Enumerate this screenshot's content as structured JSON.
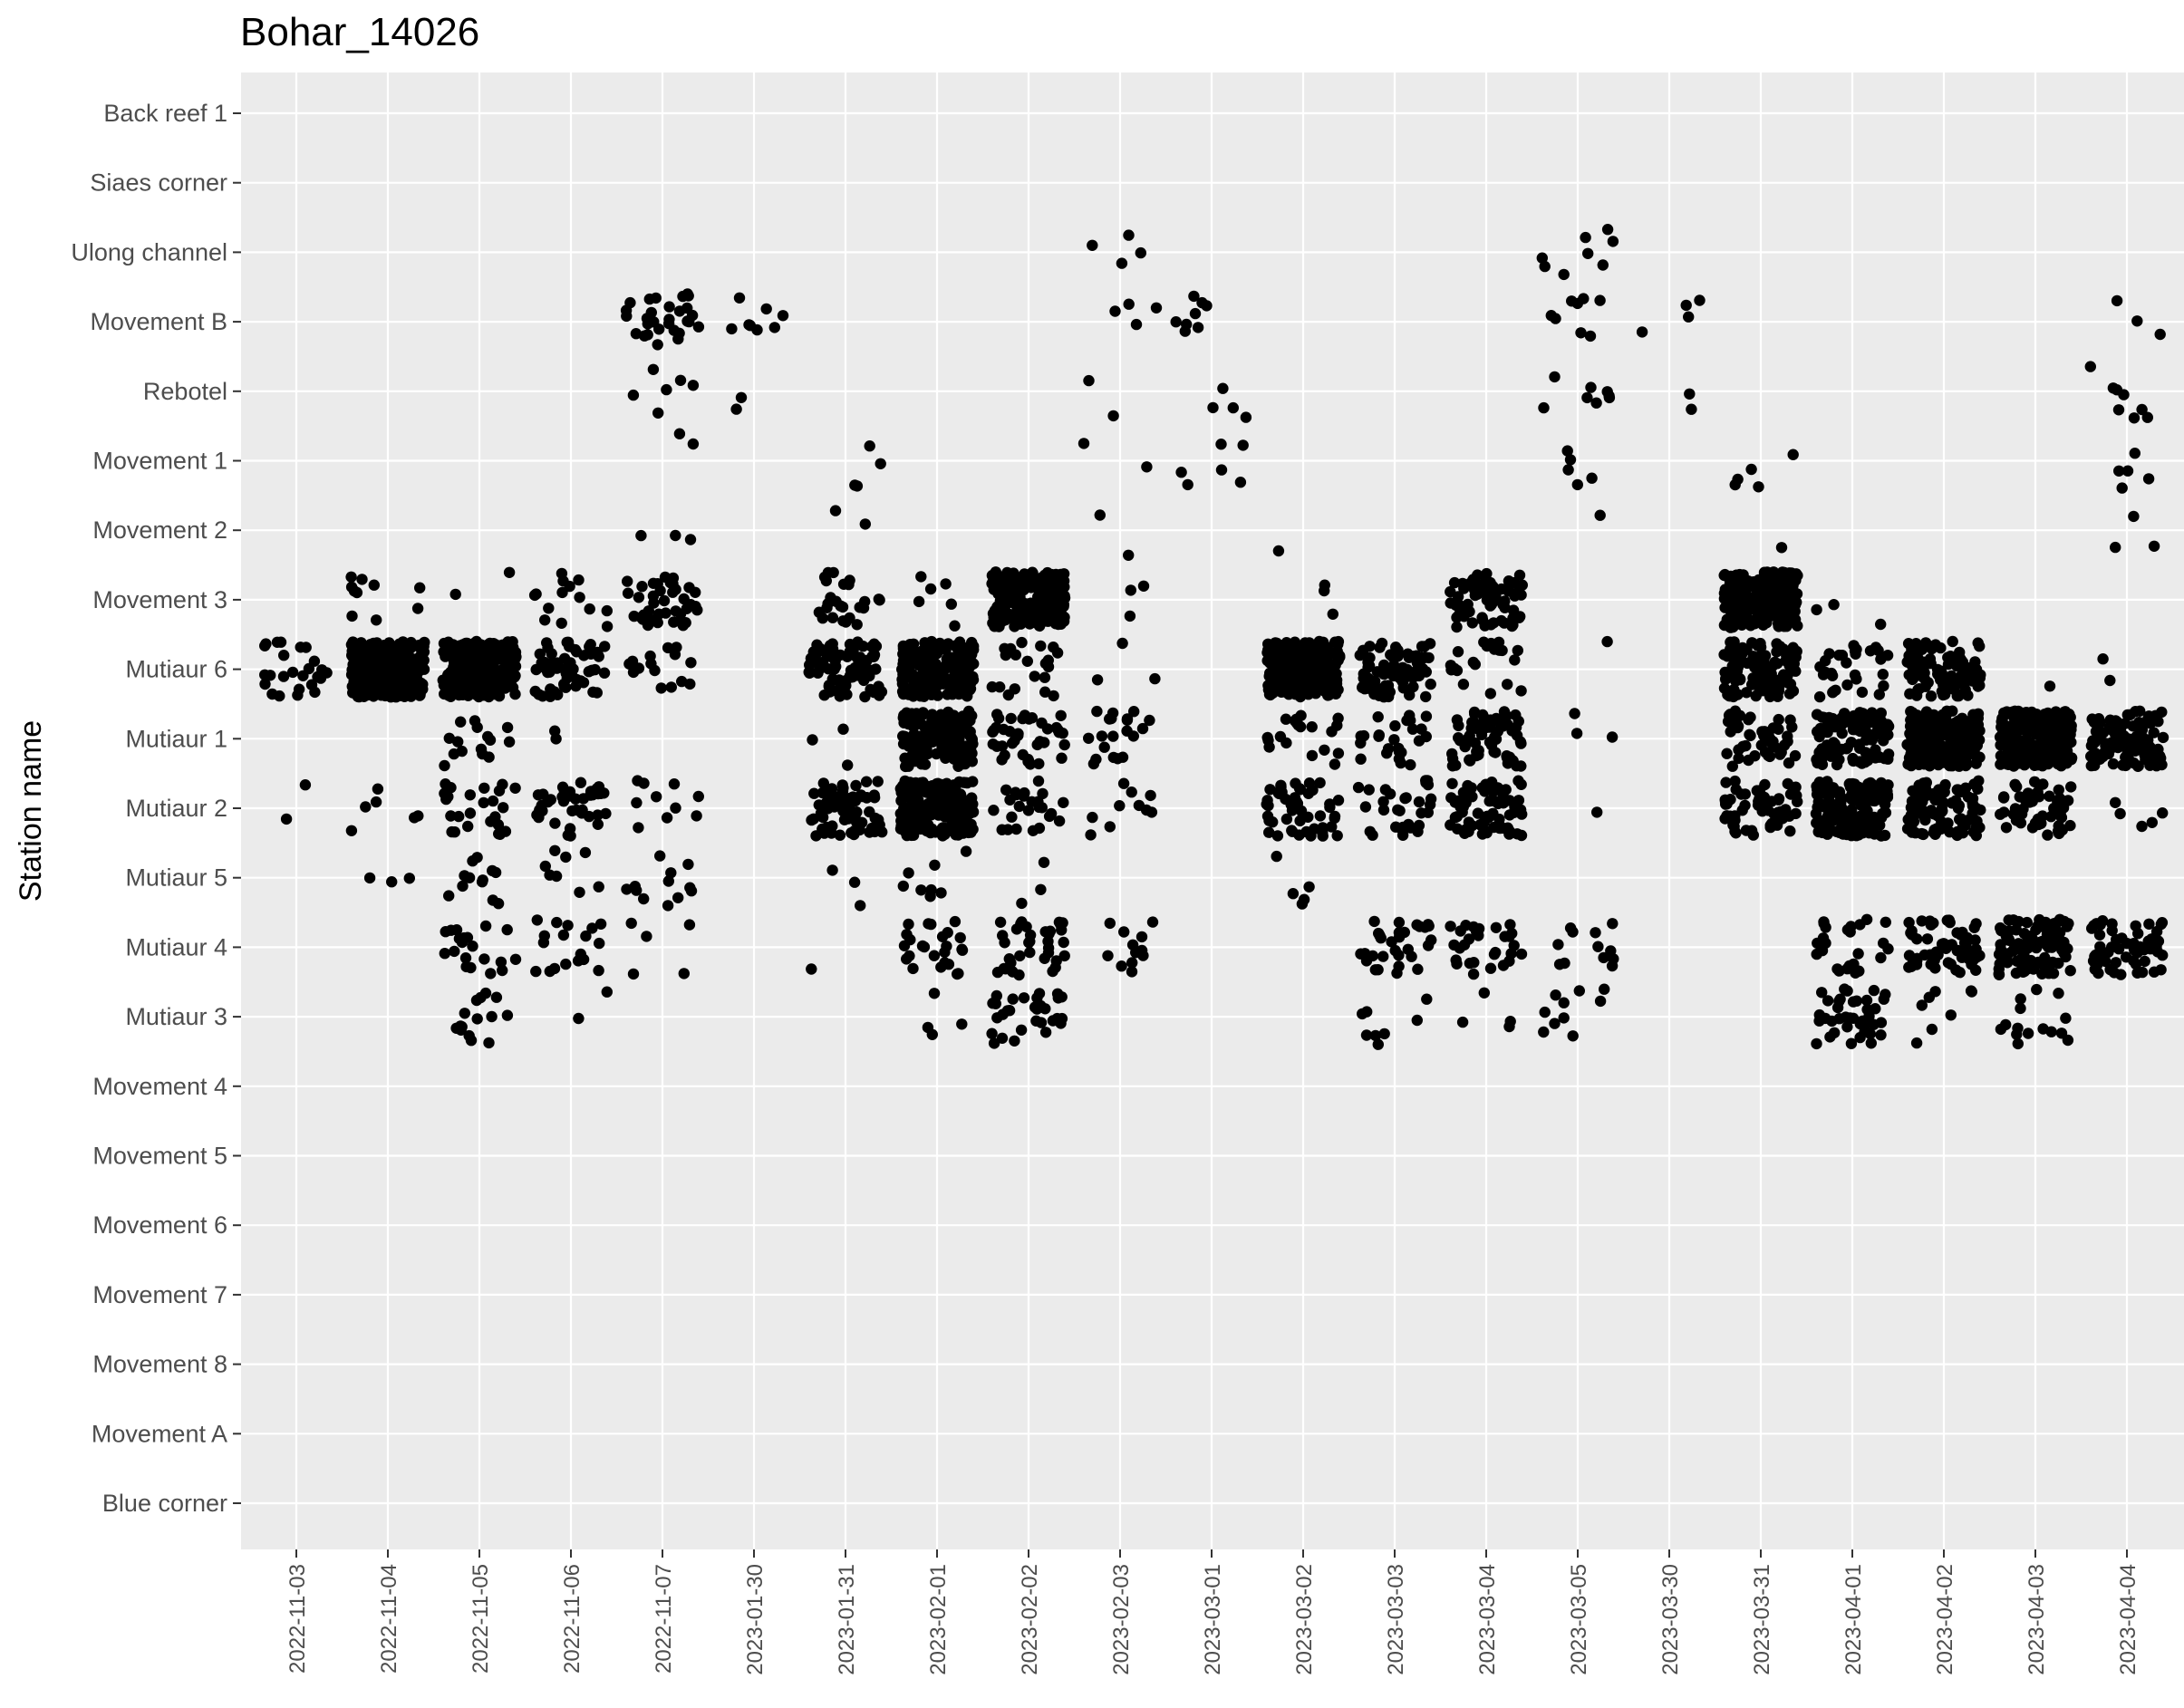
{
  "chart_data": {
    "type": "scatter",
    "title": "Bohar_14026",
    "xlabel": "",
    "ylabel": "Station name",
    "grid": true,
    "legend": "none",
    "point_color": "#000000",
    "panel_color": "#ebebeb",
    "grid_color": "#ffffff",
    "x_categories": [
      "2022-11-03",
      "2022-11-04",
      "2022-11-05",
      "2022-11-06",
      "2022-11-07",
      "2023-01-30",
      "2023-01-31",
      "2023-02-01",
      "2023-02-02",
      "2023-02-03",
      "2023-03-01",
      "2023-03-02",
      "2023-03-03",
      "2023-03-04",
      "2023-03-05",
      "2023-03-30",
      "2023-03-31",
      "2023-04-01",
      "2023-04-02",
      "2023-04-03",
      "2023-04-04"
    ],
    "y_categories": [
      "Back reef 1",
      "Siaes corner",
      "Ulong channel",
      "Movement B",
      "Rebotel",
      "Movement 1",
      "Movement 2",
      "Movement 3",
      "Mutiaur 6",
      "Mutiaur 1",
      "Mutiaur 2",
      "Mutiaur 5",
      "Mutiaur 4",
      "Mutiaur 3",
      "Movement 4",
      "Movement 5",
      "Movement 6",
      "Movement 7",
      "Movement 8",
      "Movement A",
      "Blue corner"
    ],
    "jitter": {
      "x": 0.4,
      "y": 0.4
    },
    "detection_groups": [
      {
        "x": "2022-11-03",
        "counts": {
          "Mutiaur 6": 25,
          "Mutiaur 2": 2
        }
      },
      {
        "x": "2022-11-04",
        "counts": {
          "Movement 3": 10,
          "Mutiaur 6": 300,
          "Mutiaur 2": 6,
          "Mutiaur 5": 3
        }
      },
      {
        "x": "2022-11-05",
        "counts": {
          "Movement 3": 2,
          "Mutiaur 6": 250,
          "Mutiaur 1": 15,
          "Mutiaur 2": 25,
          "Mutiaur 5": 12,
          "Mutiaur 4": 20,
          "Mutiaur 3": 15
        }
      },
      {
        "x": "2022-11-06",
        "counts": {
          "Movement 3": 14,
          "Mutiaur 6": 60,
          "Mutiaur 1": 2,
          "Mutiaur 2": 40,
          "Mutiaur 5": 8,
          "Mutiaur 4": 18,
          "Mutiaur 3": 2
        }
      },
      {
        "x": "2022-11-07",
        "counts": {
          "Movement B": 30,
          "Rebotel": 6,
          "Movement 1": 2,
          "Movement 2": 3,
          "Movement 3": 40,
          "Mutiaur 6": 15,
          "Mutiaur 2": 10,
          "Mutiaur 5": 12,
          "Mutiaur 4": 5
        }
      },
      {
        "x": "2023-01-30",
        "counts": {
          "Movement B": 8,
          "Rebotel": 2
        }
      },
      {
        "x": "2023-01-31",
        "counts": {
          "Movement 1": 4,
          "Movement 2": 2,
          "Movement 3": 25,
          "Mutiaur 6": 80,
          "Mutiaur 1": 3,
          "Mutiaur 2": 70,
          "Mutiaur 5": 3,
          "Mutiaur 4": 1
        }
      },
      {
        "x": "2023-02-01",
        "counts": {
          "Movement 3": 6,
          "Mutiaur 6": 200,
          "Mutiaur 1": 150,
          "Mutiaur 2": 200,
          "Mutiaur 5": 8,
          "Mutiaur 4": 25,
          "Mutiaur 3": 4
        }
      },
      {
        "x": "2023-02-02",
        "counts": {
          "Movement 3": 200,
          "Mutiaur 6": 20,
          "Mutiaur 1": 40,
          "Mutiaur 2": 25,
          "Mutiaur 5": 3,
          "Mutiaur 4": 35,
          "Mutiaur 3": 30
        }
      },
      {
        "x": "2023-02-03",
        "counts": {
          "Ulong channel": 4,
          "Movement B": 4,
          "Rebotel": 2,
          "Movement 1": 2,
          "Movement 2": 2,
          "Movement 3": 3,
          "Mutiaur 6": 3,
          "Mutiaur 1": 20,
          "Mutiaur 2": 10,
          "Mutiaur 4": 12
        }
      },
      {
        "x": "2023-03-01",
        "counts": {
          "Movement B": 8,
          "Rebotel": 4,
          "Movement 1": 6
        }
      },
      {
        "x": "2023-03-02",
        "counts": {
          "Movement 2": 1,
          "Movement 3": 3,
          "Mutiaur 6": 250,
          "Mutiaur 1": 20,
          "Mutiaur 2": 50,
          "Mutiaur 5": 5
        }
      },
      {
        "x": "2023-03-03",
        "counts": {
          "Mutiaur 6": 80,
          "Mutiaur 1": 25,
          "Mutiaur 2": 30,
          "Mutiaur 4": 30,
          "Mutiaur 3": 8
        }
      },
      {
        "x": "2023-03-04",
        "counts": {
          "Movement 3": 70,
          "Mutiaur 6": 20,
          "Mutiaur 1": 60,
          "Mutiaur 2": 70,
          "Mutiaur 4": 30,
          "Mutiaur 3": 4
        }
      },
      {
        "x": "2023-03-05",
        "counts": {
          "Ulong channel": 8,
          "Movement B": 8,
          "Rebotel": 8,
          "Movement 1": 5,
          "Movement 2": 1,
          "Mutiaur 6": 1,
          "Mutiaur 1": 3,
          "Mutiaur 2": 1,
          "Mutiaur 4": 12,
          "Mutiaur 3": 10
        }
      },
      {
        "x": "2023-03-30",
        "counts": {
          "Movement B": 4,
          "Rebotel": 2
        }
      },
      {
        "x": "2023-03-31",
        "counts": {
          "Movement 1": 5,
          "Movement 2": 1,
          "Movement 3": 250,
          "Mutiaur 6": 120,
          "Mutiaur 1": 50,
          "Mutiaur 2": 60
        }
      },
      {
        "x": "2023-04-01",
        "counts": {
          "Movement 3": 3,
          "Mutiaur 6": 30,
          "Mutiaur 1": 100,
          "Mutiaur 2": 150,
          "Mutiaur 4": 25,
          "Mutiaur 3": 40
        }
      },
      {
        "x": "2023-04-02",
        "counts": {
          "Mutiaur 6": 100,
          "Mutiaur 1": 200,
          "Mutiaur 2": 100,
          "Mutiaur 4": 60,
          "Mutiaur 3": 8
        }
      },
      {
        "x": "2023-04-03",
        "counts": {
          "Mutiaur 6": 1,
          "Mutiaur 1": 250,
          "Mutiaur 2": 50,
          "Mutiaur 4": 100,
          "Mutiaur 3": 15
        }
      },
      {
        "x": "2023-04-04",
        "counts": {
          "Movement B": 3,
          "Rebotel": 8,
          "Movement 1": 5,
          "Movement 2": 3,
          "Mutiaur 6": 2,
          "Mutiaur 1": 100,
          "Mutiaur 2": 5,
          "Mutiaur 4": 60
        }
      }
    ]
  }
}
